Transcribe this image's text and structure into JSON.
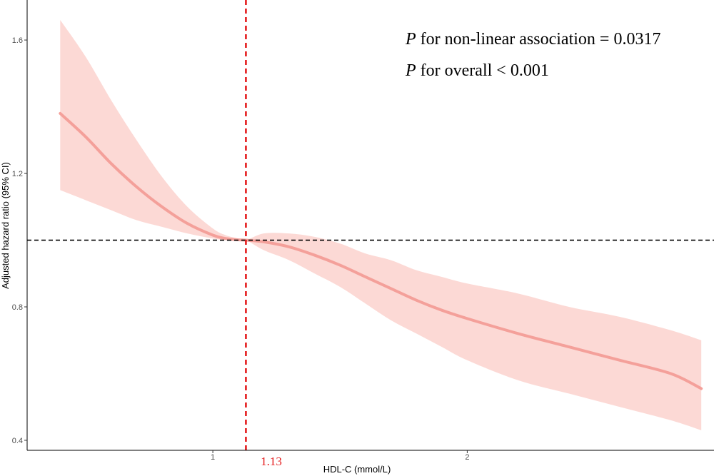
{
  "chart_data": {
    "type": "line",
    "xlabel": "HDL-C (mmol/L)",
    "ylabel": "Adjusted hazard ratio  (95% CI)",
    "xlim": [
      0.27,
      2.97
    ],
    "ylim": [
      0.37,
      1.72
    ],
    "x_ticks": [
      1,
      2
    ],
    "x_tick_labels": [
      "1",
      "2"
    ],
    "y_ticks": [
      0.4,
      0.8,
      1.2,
      1.6
    ],
    "y_tick_labels": [
      "0.4",
      "0.8",
      "1.2",
      "1.6"
    ],
    "grid": false,
    "series": [
      {
        "x": [
          0.4,
          0.5,
          0.6,
          0.7,
          0.8,
          0.9,
          1.0,
          1.05,
          1.1,
          1.13,
          1.2,
          1.3,
          1.4,
          1.5,
          1.6,
          1.7,
          1.8,
          1.9,
          2.0,
          2.2,
          2.4,
          2.6,
          2.8,
          2.92
        ],
        "y": [
          1.38,
          1.31,
          1.23,
          1.16,
          1.1,
          1.05,
          1.015,
          1.005,
          1.001,
          1.0,
          0.995,
          0.98,
          0.955,
          0.925,
          0.89,
          0.855,
          0.82,
          0.79,
          0.765,
          0.72,
          0.68,
          0.64,
          0.6,
          0.555
        ],
        "lower": [
          1.15,
          1.12,
          1.09,
          1.06,
          1.04,
          1.02,
          1.005,
          1.0,
          0.998,
          1.0,
          0.97,
          0.94,
          0.9,
          0.86,
          0.81,
          0.76,
          0.72,
          0.68,
          0.64,
          0.58,
          0.54,
          0.5,
          0.46,
          0.43
        ],
        "upper": [
          1.66,
          1.55,
          1.42,
          1.3,
          1.19,
          1.1,
          1.035,
          1.015,
          1.005,
          1.0,
          1.02,
          1.02,
          1.01,
          0.99,
          0.96,
          0.94,
          0.91,
          0.89,
          0.87,
          0.84,
          0.8,
          0.77,
          0.73,
          0.7
        ],
        "color": "#f4a09a",
        "band_color": "#fcd2ce"
      }
    ],
    "reference_lines": {
      "horizontal": {
        "y": 1.0,
        "color": "#000000",
        "style": "dashed"
      },
      "vertical": {
        "x": 1.13,
        "label": "1.13",
        "color": "#e41a1c",
        "style": "dashed"
      }
    },
    "annotations": [
      {
        "italic": "P",
        "text": " for non-linear association = 0.0317"
      },
      {
        "italic": "P",
        "text": " for overall < 0.001"
      }
    ]
  }
}
